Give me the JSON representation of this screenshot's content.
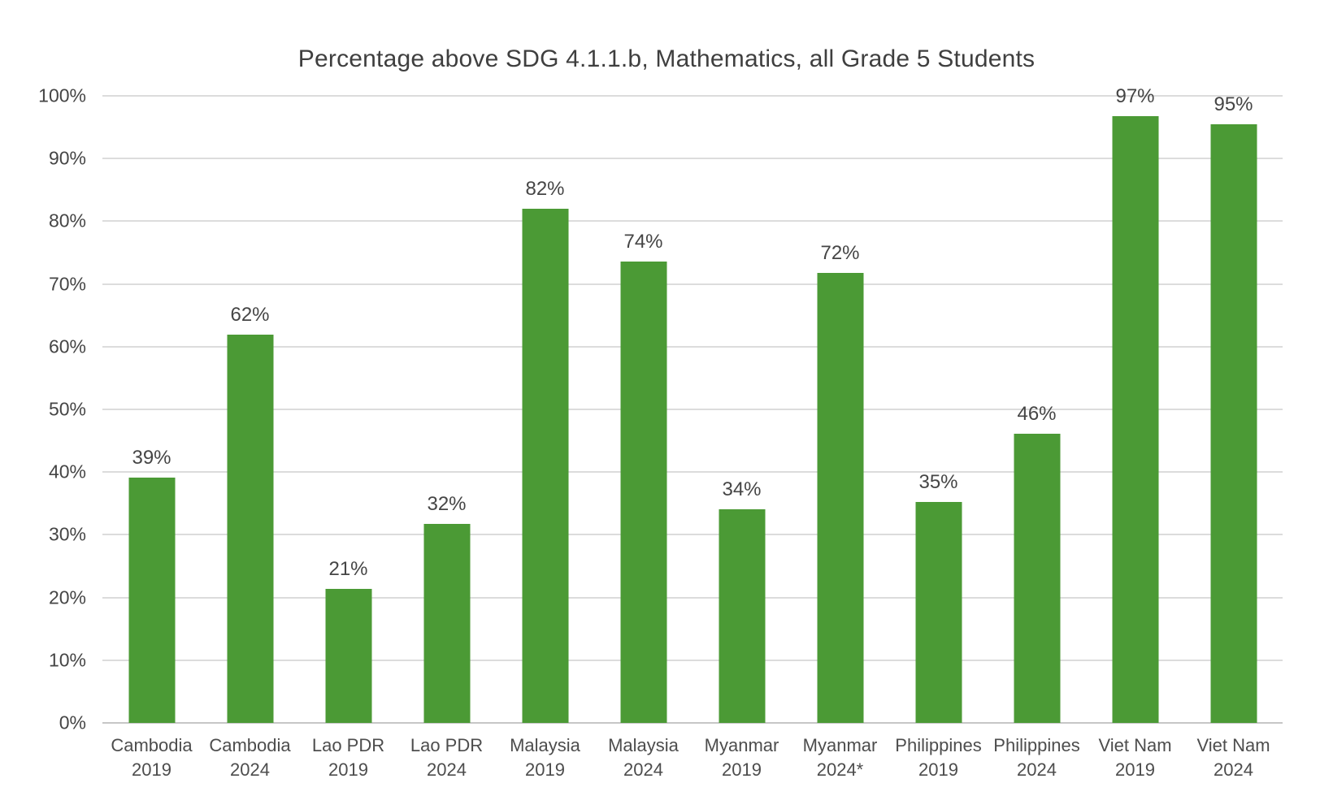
{
  "title": "Percentage above SDG 4.1.1.b, Mathematics, all Grade 5 Students",
  "chart_data": {
    "type": "bar",
    "title": "Percentage above SDG 4.1.1.b, Mathematics, all Grade 5 Students",
    "categories": [
      "Cambodia 2019",
      "Cambodia 2024",
      "Lao PDR 2019",
      "Lao PDR 2024",
      "Malaysia 2019",
      "Malaysia 2024",
      "Myanmar 2019",
      "Myanmar 2024*",
      "Philippines 2019",
      "Philippines 2024",
      "Viet Nam 2019",
      "Viet Nam 2024"
    ],
    "x_tick_lines": [
      [
        "Cambodia",
        "2019"
      ],
      [
        "Cambodia",
        "2024"
      ],
      [
        "Lao PDR",
        "2019"
      ],
      [
        "Lao PDR",
        "2024"
      ],
      [
        "Malaysia",
        "2019"
      ],
      [
        "Malaysia",
        "2024"
      ],
      [
        "Myanmar",
        "2019"
      ],
      [
        "Myanmar",
        "2024*"
      ],
      [
        "Philippines",
        "2019"
      ],
      [
        "Philippines",
        "2024"
      ],
      [
        "Viet Nam",
        "2019"
      ],
      [
        "Viet Nam",
        "2024"
      ]
    ],
    "values": [
      39,
      62,
      21,
      32,
      82,
      74,
      34,
      72,
      35,
      46,
      97,
      95
    ],
    "value_labels": [
      "39%",
      "62%",
      "21%",
      "32%",
      "82%",
      "74%",
      "34%",
      "72%",
      "35%",
      "46%",
      "97%",
      "95%"
    ],
    "bar_heights_percent": [
      39.1,
      61.9,
      21.4,
      31.7,
      82.0,
      73.6,
      34.1,
      71.8,
      35.2,
      46.1,
      96.8,
      95.5
    ],
    "xlabel": "",
    "ylabel": "",
    "ylim": [
      0,
      100
    ],
    "y_ticks": [
      0,
      10,
      20,
      30,
      40,
      50,
      60,
      70,
      80,
      90,
      100
    ],
    "y_tick_labels": [
      "0%",
      "10%",
      "20%",
      "30%",
      "40%",
      "50%",
      "60%",
      "70%",
      "80%",
      "90%",
      "100%"
    ],
    "grid": "horizontal",
    "legend": "none",
    "colors": {
      "bar": "#4b9a35",
      "title_text": "#3f3f3f",
      "axis_text": "#454545",
      "x_axis_text": "#4d4d4d",
      "gridline": "#dcdcdc",
      "baseline": "#c6c6c6",
      "background": "#ffffff"
    }
  }
}
